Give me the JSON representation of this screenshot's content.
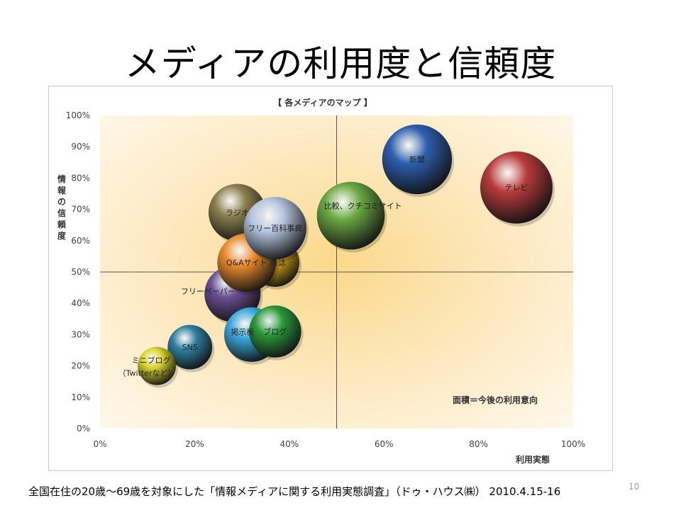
{
  "slide": {
    "title": "メディアの利用度と信頼度",
    "footer": "全国在住の20歳～69歳を対象にした「情報メディアに関する利用実態調査」（ドゥ・ハウス㈱） 2010.4.15-16",
    "page_number": "10"
  },
  "chart_data": {
    "type": "bubble",
    "title": "【 各メディアのマップ 】",
    "xlabel": "利用実態",
    "ylabel": "情報の信頼度",
    "xlim": [
      0,
      100
    ],
    "ylim": [
      0,
      100
    ],
    "x_ticks": [
      "0%",
      "20%",
      "40%",
      "60%",
      "80%",
      "100%"
    ],
    "y_ticks": [
      "0%",
      "10%",
      "20%",
      "30%",
      "40%",
      "50%",
      "60%",
      "70%",
      "80%",
      "90%",
      "100%"
    ],
    "quadrant_lines": {
      "x": 50,
      "y": 50
    },
    "size_note": "面積＝今後の利用意向",
    "points": [
      {
        "label": "テレビ",
        "x": 88,
        "y": 77,
        "size": 100,
        "color": "#b83b3b"
      },
      {
        "label": "新聞",
        "x": 67,
        "y": 86,
        "size": 93,
        "color": "#2e5fae"
      },
      {
        "label": "比較、クチコミサイト",
        "x": 53,
        "y": 68,
        "size": 88,
        "color": "#6aa842"
      },
      {
        "label": "ラジオ",
        "x": 29,
        "y": 69,
        "size": 63,
        "color": "#8c8050"
      },
      {
        "label": "雑誌",
        "x": 37,
        "y": 53,
        "size": 45,
        "color": "#d4a617"
      },
      {
        "label": "フリー百科事典",
        "x": 37,
        "y": 64,
        "size": 75,
        "color": "#b4c4de"
      },
      {
        "label": "Q&Aサイト",
        "x": 31,
        "y": 53,
        "size": 66,
        "color": "#e98a2c"
      },
      {
        "label": "フリーペーパー",
        "x": 28,
        "y": 43,
        "size": 60,
        "color": "#6a4f95"
      },
      {
        "label": "掲示板",
        "x": 32,
        "y": 30,
        "size": 57,
        "color": "#3da9e0"
      },
      {
        "label": "ブログ",
        "x": 37,
        "y": 31,
        "size": 52,
        "color": "#2a9a3a"
      },
      {
        "label": "SNS",
        "x": 19,
        "y": 26,
        "size": 38,
        "color": "#2f7fa0"
      },
      {
        "label": "ミニブログ（Twitterなど）",
        "x": 12,
        "y": 20,
        "size": 28,
        "color": "#d6d42a"
      }
    ]
  }
}
